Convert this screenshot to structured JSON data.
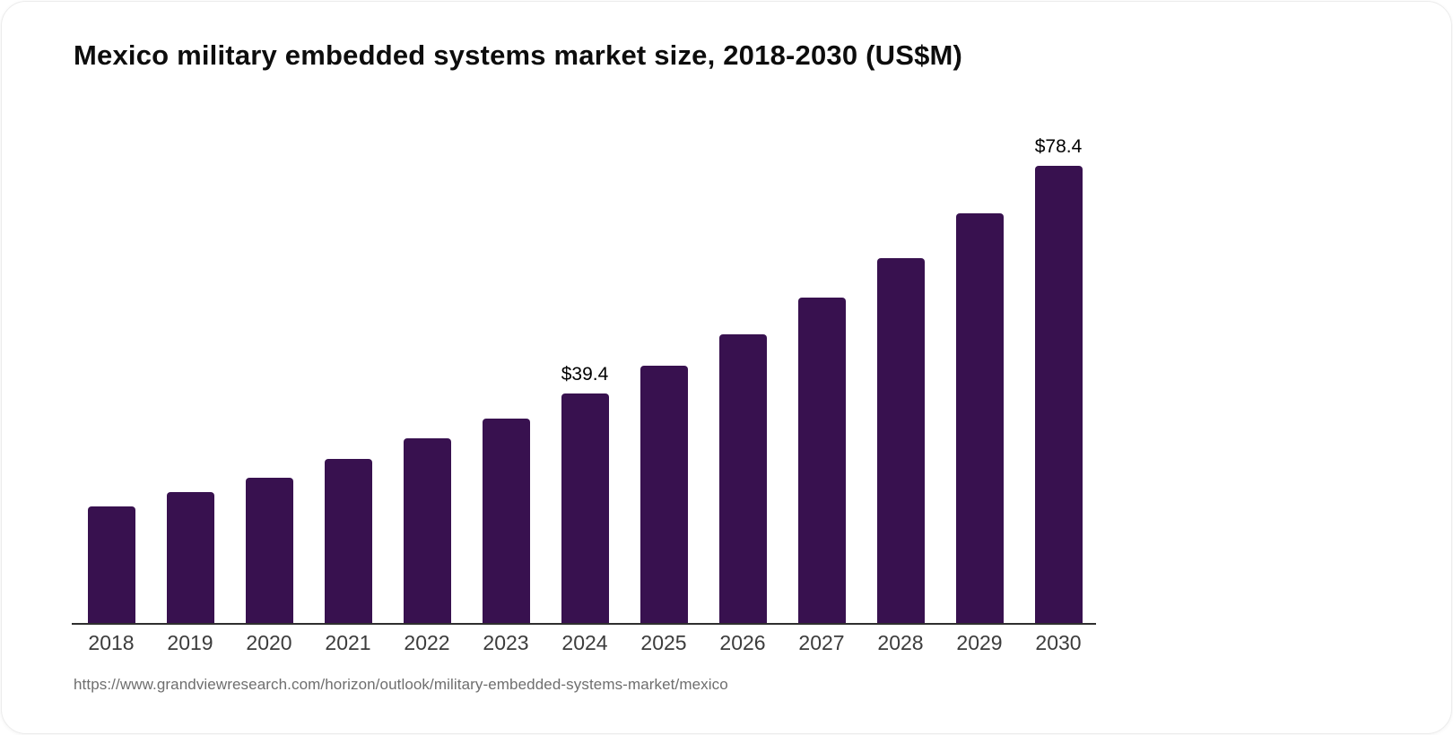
{
  "header": {
    "title": "Mexico military embedded systems market size, 2018-2030 (US$M)"
  },
  "footer": {
    "source_url": "https://www.grandviewresearch.com/horizon/outlook/military-embedded-systems-market/mexico"
  },
  "chart_data": {
    "type": "bar",
    "title": "Mexico military embedded systems market size, 2018-2030 (US$M)",
    "categories": [
      "2018",
      "2019",
      "2020",
      "2021",
      "2022",
      "2023",
      "2024",
      "2025",
      "2026",
      "2027",
      "2028",
      "2029",
      "2030"
    ],
    "values": [
      20.1,
      22.6,
      25.0,
      28.3,
      31.7,
      35.1,
      39.4,
      44.2,
      49.6,
      55.8,
      62.6,
      70.3,
      78.4
    ],
    "data_labels": {
      "2024": "$39.4",
      "2030": "$78.4"
    },
    "xlabel": "",
    "ylabel": "US$M",
    "ylim": [
      0,
      80
    ],
    "grid": false,
    "legend": "none",
    "bar_color": "#38114f",
    "axis_color": "#2f2f2f"
  }
}
